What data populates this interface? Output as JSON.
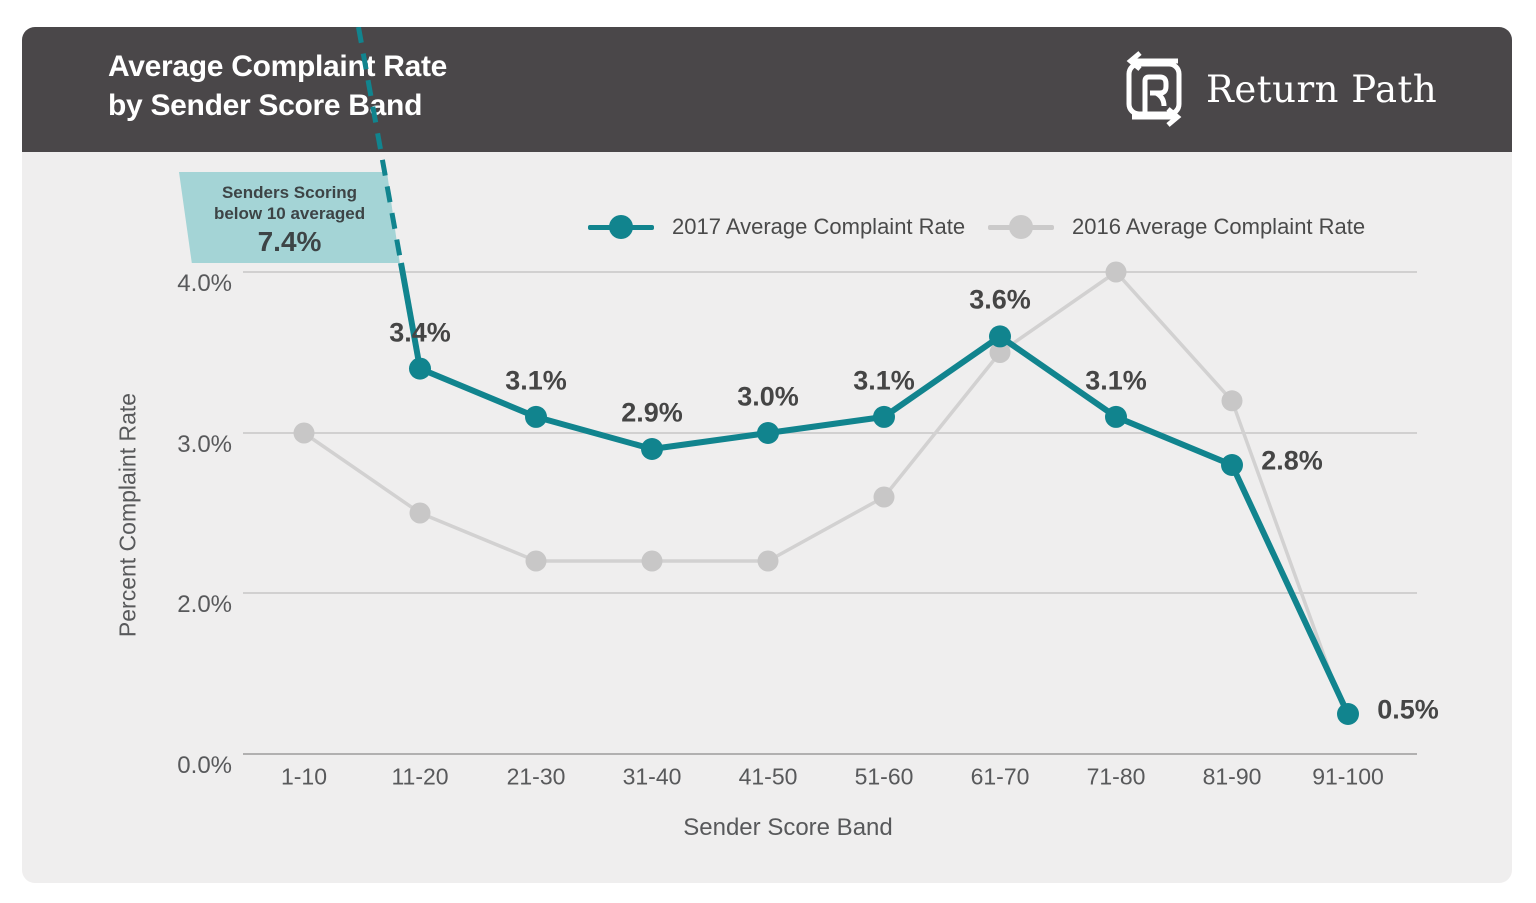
{
  "header": {
    "title_line1": "Average Complaint Rate",
    "title_line2": "by Sender Score Band",
    "brand": "Return Path"
  },
  "annotation": {
    "line1": "Senders Scoring",
    "line2": "below 10 averaged",
    "value": "7.4%"
  },
  "legend": {
    "items": [
      {
        "label": "2017 Average Complaint Rate",
        "color": "#11848e"
      },
      {
        "label": "2016 Average Complaint Rate",
        "color": "#cbcaca"
      }
    ]
  },
  "chart_data": {
    "type": "line",
    "title": "Average Complaint Rate by Sender Score Band",
    "xlabel": "Sender Score Band",
    "ylabel": "Percent Complaint Rate",
    "categories": [
      "1-10",
      "11-20",
      "21-30",
      "31-40",
      "41-50",
      "51-60",
      "61-70",
      "71-80",
      "81-90",
      "91-100"
    ],
    "y_ticks": [
      {
        "label": "0.0%",
        "value": 0
      },
      {
        "label": "2.0%",
        "value": 2
      },
      {
        "label": "3.0%",
        "value": 3
      },
      {
        "label": "4.0%",
        "value": 4
      }
    ],
    "ylim": [
      0,
      4.2
    ],
    "grid": "horizontal",
    "legend_position": "top",
    "series": [
      {
        "name": "2017 Average Complaint Rate",
        "color": "#11848e",
        "values": [
          7.4,
          3.4,
          3.1,
          2.9,
          3.0,
          3.1,
          3.6,
          3.1,
          2.8,
          0.5
        ],
        "labels": [
          null,
          "3.4%",
          "3.1%",
          "2.9%",
          "3.0%",
          "3.1%",
          "3.6%",
          "3.1%",
          "2.8%",
          "0.5%"
        ],
        "label_side": [
          null,
          "above",
          "above",
          "above",
          "above",
          "above",
          "above",
          "above",
          "right",
          "right"
        ],
        "first_point_offchart": true,
        "offchart_note": "Senders Scoring below 10 averaged 7.4%"
      },
      {
        "name": "2016 Average Complaint Rate",
        "color": "#d2d1d1",
        "dot_color": "#c8c7c7",
        "values": [
          3.0,
          2.5,
          2.2,
          2.2,
          2.2,
          2.6,
          3.5,
          4.0,
          3.2,
          0.4
        ],
        "labels": []
      }
    ]
  }
}
